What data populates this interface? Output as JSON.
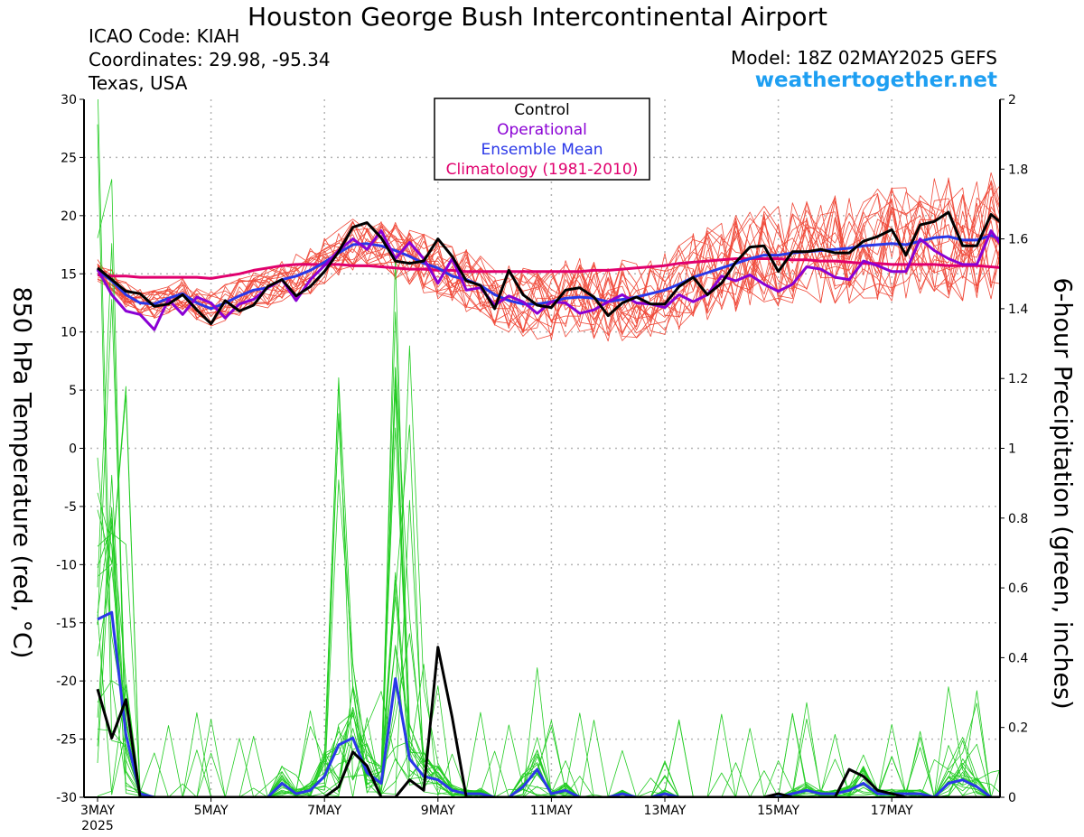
{
  "header": {
    "title": "Houston George Bush Intercontinental Airport",
    "icao": "ICAO Code: KIAH",
    "coordinates": "Coordinates: 29.98, -95.34",
    "region": "Texas, USA",
    "model": "Model: 18Z 02MAY2025 GEFS",
    "website": "weathertogether.net"
  },
  "chart_data": {
    "type": "line",
    "title": "Houston George Bush Intercontinental Airport",
    "ylabel_left": "850 hPa Temperature (red, °C)",
    "ylabel_right": "6-hour Precipitation (green, inches)",
    "ylim_left": [
      -30,
      30
    ],
    "ylim_right": [
      0,
      2
    ],
    "yticks_left": [
      "30",
      "25",
      "20",
      "15",
      "10",
      "5",
      "0",
      "-5",
      "-10",
      "-15",
      "-20",
      "-25",
      "-30"
    ],
    "yticks_right": [
      "2",
      "1.8",
      "1.6",
      "1.4",
      "1.2",
      "1",
      "0.8",
      "0.6",
      "0.4",
      "0.2",
      "0"
    ],
    "x_step_hours": 6,
    "x_start": "00Z 03MAY2025",
    "xticks": [
      {
        "label": "3MAY",
        "sub": "2025",
        "step": 0
      },
      {
        "label": "5MAY",
        "step": 8
      },
      {
        "label": "7MAY",
        "step": 16
      },
      {
        "label": "9MAY",
        "step": 24
      },
      {
        "label": "11MAY",
        "step": 32
      },
      {
        "label": "13MAY",
        "step": 40
      },
      {
        "label": "15MAY",
        "step": 48
      },
      {
        "label": "17MAY",
        "step": 56
      }
    ],
    "grid": true,
    "legend": {
      "position": "top-center",
      "entries": [
        {
          "label": "Control",
          "color": "#000000"
        },
        {
          "label": "Operational",
          "color": "#8a00d4"
        },
        {
          "label": "Ensemble Mean",
          "color": "#2a37e8"
        },
        {
          "label": "Climatology (1981-2010)",
          "color": "#e0006e"
        }
      ]
    },
    "colors": {
      "control": "#000000",
      "operational": "#8a00d4",
      "mean": "#2a37e8",
      "climatology": "#e0006e",
      "members_temp": "#f04a3a",
      "members_precip": "#22cc22"
    },
    "temperature": {
      "control": [
        15.5,
        14.5,
        13.5,
        13.3,
        12.2,
        12.4,
        13.2,
        11.9,
        10.7,
        12.7,
        11.8,
        12.3,
        13.9,
        14.5,
        13.1,
        13.9,
        15.2,
        16.9,
        19.0,
        19.4,
        18.1,
        16.1,
        15.9,
        16.1,
        18.0,
        16.5,
        14.4,
        14.0,
        12.0,
        15.3,
        13.2,
        12.3,
        12.1,
        13.6,
        13.8,
        13.0,
        11.4,
        12.5,
        13.0,
        12.4,
        12.4,
        13.9,
        14.7,
        13.2,
        14.2,
        16.0,
        17.3,
        17.4,
        15.2,
        16.9,
        16.9,
        17.1,
        16.8,
        16.8,
        17.8,
        18.2,
        18.8,
        16.6,
        19.2,
        19.5,
        20.3,
        17.4,
        17.4,
        20.1,
        19.1,
        16.7
      ],
      "operational": [
        15.4,
        13.2,
        11.8,
        11.5,
        10.2,
        12.8,
        11.5,
        13.0,
        12.5,
        11.2,
        12.4,
        12.8,
        13.8,
        14.5,
        12.7,
        14.5,
        15.7,
        17.0,
        18.0,
        17.1,
        18.7,
        16.3,
        17.7,
        16.3,
        14.2,
        16.3,
        13.6,
        13.8,
        12.3,
        13.1,
        12.6,
        11.6,
        12.6,
        12.5,
        11.6,
        11.9,
        12.6,
        13.2,
        12.5,
        12.4,
        12.1,
        13.2,
        12.6,
        13.2,
        14.8,
        14.4,
        14.9,
        14.1,
        13.5,
        14.1,
        15.6,
        15.4,
        14.7,
        14.5,
        16.1,
        15.7,
        15.2,
        15.2,
        18.0,
        17.0,
        16.3,
        15.8,
        15.8,
        18.7,
        17.0,
        16.7
      ],
      "mean": [
        15.3,
        14.4,
        13.2,
        12.5,
        12.4,
        12.9,
        13.3,
        12.5,
        12.0,
        12.5,
        13.1,
        13.6,
        13.8,
        14.5,
        14.8,
        15.3,
        16.0,
        16.8,
        17.5,
        17.6,
        17.4,
        17.0,
        16.5,
        15.9,
        15.5,
        14.8,
        14.5,
        14.0,
        13.2,
        12.7,
        12.4,
        12.4,
        12.6,
        12.9,
        13.0,
        12.9,
        12.6,
        12.8,
        13.0,
        13.3,
        13.6,
        14.1,
        14.7,
        15.1,
        15.5,
        15.9,
        16.3,
        16.6,
        16.6,
        16.8,
        16.9,
        17.0,
        17.1,
        17.2,
        17.4,
        17.5,
        17.6,
        17.5,
        17.8,
        18.1,
        18.2,
        17.9,
        17.9,
        18.3,
        17.8,
        16.8
      ],
      "climatology": [
        14.9,
        14.8,
        14.8,
        14.7,
        14.7,
        14.7,
        14.7,
        14.7,
        14.6,
        14.8,
        15.0,
        15.3,
        15.5,
        15.7,
        15.8,
        15.8,
        15.8,
        15.8,
        15.7,
        15.7,
        15.6,
        15.5,
        15.4,
        15.4,
        15.3,
        15.3,
        15.2,
        15.2,
        15.2,
        15.2,
        15.2,
        15.2,
        15.2,
        15.2,
        15.2,
        15.3,
        15.3,
        15.4,
        15.5,
        15.6,
        15.7,
        15.9,
        16.0,
        16.1,
        16.2,
        16.3,
        16.3,
        16.3,
        16.3,
        16.2,
        16.2,
        16.1,
        16.1,
        16.0,
        15.9,
        15.9,
        15.8,
        15.8,
        15.8,
        15.8,
        15.7,
        15.7,
        15.7,
        15.6,
        15.5,
        15.4
      ]
    },
    "precipitation": {
      "control": [
        0.31,
        0.17,
        0.28,
        0,
        0,
        0,
        0,
        0,
        0,
        0,
        0,
        0,
        0,
        0,
        0,
        0,
        0,
        0.03,
        0.13,
        0.09,
        0,
        0,
        0.05,
        0.02,
        0.43,
        0.23,
        0,
        0,
        0,
        0,
        0,
        0,
        0,
        0,
        0,
        0,
        0,
        0,
        0,
        0,
        0,
        0,
        0,
        0,
        0,
        0,
        0,
        0,
        0.01,
        0,
        0,
        0,
        0,
        0.08,
        0.06,
        0.02,
        0.01,
        0,
        0,
        0,
        0,
        0,
        0,
        0,
        0,
        0
      ],
      "mean": [
        0.51,
        0.53,
        0.18,
        0.01,
        0,
        0,
        0,
        0,
        0,
        0,
        0,
        0,
        0,
        0.04,
        0.01,
        0.02,
        0.06,
        0.15,
        0.17,
        0.07,
        0.04,
        0.34,
        0.11,
        0.06,
        0.05,
        0.02,
        0.01,
        0.01,
        0,
        0,
        0.03,
        0.08,
        0.01,
        0.02,
        0,
        0,
        0,
        0.01,
        0,
        0,
        0.01,
        0,
        0,
        0,
        0,
        0,
        0,
        0,
        0,
        0.01,
        0.02,
        0.01,
        0.01,
        0.02,
        0.04,
        0.01,
        0.01,
        0.01,
        0.01,
        0,
        0.04,
        0.05,
        0.03,
        0,
        0,
        0
      ]
    }
  }
}
